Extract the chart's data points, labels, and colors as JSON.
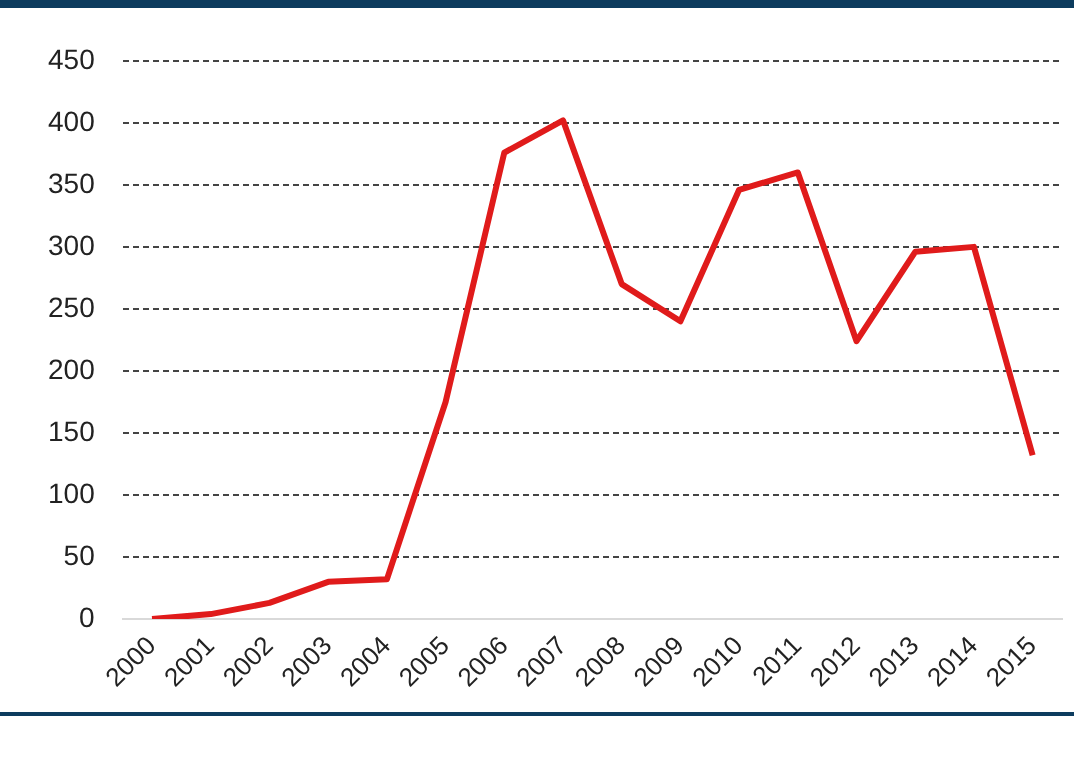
{
  "chart_data": {
    "type": "line",
    "categories": [
      "2000",
      "2001",
      "2002",
      "2003",
      "2004",
      "2005",
      "2006",
      "2007",
      "2008",
      "2009",
      "2010",
      "2011",
      "2012",
      "2013",
      "2014",
      "2015"
    ],
    "series": [
      {
        "color": "#e01b1b",
        "values": [
          0,
          4,
          13,
          30,
          32,
          175,
          376,
          402,
          270,
          240,
          346,
          360,
          224,
          296,
          300,
          132
        ]
      }
    ],
    "ylim": [
      0,
      450
    ],
    "yticks": [
      0,
      50,
      100,
      150,
      200,
      250,
      300,
      350,
      400,
      450
    ],
    "grid": "y",
    "legend": false,
    "marker": "none",
    "line_style": "solid"
  }
}
